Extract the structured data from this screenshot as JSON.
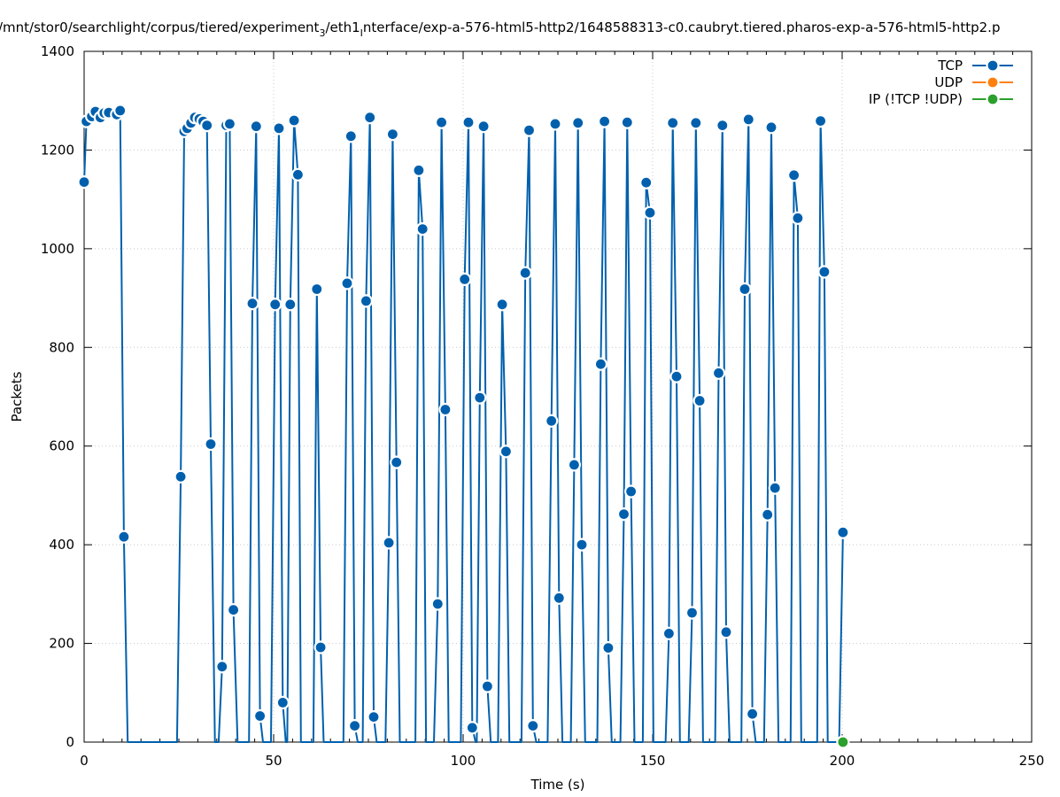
{
  "chart_data": {
    "type": "line",
    "title": "/mnt/stor0/searchlight/corpus/tiered/experiment_3/eth1_interface/exp-a-576-html5-http2/1648588313-c0.caubryt.tiered.pharos-exp-a-576-html5-http2.p",
    "title_parts": {
      "a": "/mnt/stor0/searchlight/corpus/tiered/experiment",
      "a_sub": "3",
      "b": "/eth1",
      "b_sub": "I",
      "c": "nterface/exp-a-576-html5-http2/1648588313-c0.caubryt.tiered.pharos-exp-a-576-html5-http2.p"
    },
    "xlabel": "Time (s)",
    "ylabel": "Packets",
    "xlim": [
      0,
      250
    ],
    "ylim": [
      0,
      1400
    ],
    "x_ticks": [
      0,
      50,
      100,
      150,
      200,
      250
    ],
    "y_ticks": [
      0,
      200,
      400,
      600,
      800,
      1000,
      1200,
      1400
    ],
    "x_tick_labels": [
      "0",
      "50",
      "100",
      "150",
      "200",
      "250"
    ],
    "y_tick_labels": [
      "0",
      "200",
      "400",
      "600",
      "800",
      "1000",
      "1200",
      "1400"
    ],
    "grid": true,
    "legend_position": "top-right",
    "series": [
      {
        "name": "TCP",
        "color": "#0060ad",
        "points": [
          [
            0,
            1135
          ],
          [
            0.6,
            1258
          ],
          [
            2,
            1268
          ],
          [
            3,
            1278
          ],
          [
            4.3,
            1266
          ],
          [
            5.3,
            1275
          ],
          [
            6.5,
            1276
          ],
          [
            8.6,
            1272
          ],
          [
            9.5,
            1280
          ],
          [
            10.5,
            416
          ],
          [
            11.5,
            0
          ],
          [
            24.5,
            0
          ],
          [
            25.5,
            538
          ],
          [
            26.4,
            1238
          ],
          [
            27.2,
            1244
          ],
          [
            28.2,
            1255
          ],
          [
            29.2,
            1266
          ],
          [
            30.4,
            1263
          ],
          [
            31.4,
            1258
          ],
          [
            32.4,
            1250
          ],
          [
            33.4,
            604
          ],
          [
            34.5,
            0
          ],
          [
            35.5,
            0
          ],
          [
            36.4,
            153
          ],
          [
            37.5,
            1250
          ],
          [
            38.4,
            1253
          ],
          [
            39.4,
            268
          ],
          [
            40.5,
            0
          ],
          [
            43.5,
            0
          ],
          [
            44.4,
            889
          ],
          [
            45.4,
            1248
          ],
          [
            46.4,
            53
          ],
          [
            47.2,
            0
          ],
          [
            49.3,
            0
          ],
          [
            50.4,
            887
          ],
          [
            51.4,
            1244
          ],
          [
            52.4,
            80
          ],
          [
            53.2,
            0
          ],
          [
            53.6,
            0
          ],
          [
            54.4,
            887
          ],
          [
            55.4,
            1260
          ],
          [
            56.4,
            1150
          ],
          [
            57.2,
            0
          ],
          [
            60.5,
            0
          ],
          [
            61.4,
            918
          ],
          [
            62.4,
            192
          ],
          [
            63.2,
            0
          ],
          [
            68.4,
            0
          ],
          [
            69.4,
            930
          ],
          [
            70.4,
            1228
          ],
          [
            71.4,
            33
          ],
          [
            72.2,
            0
          ],
          [
            73.5,
            0
          ],
          [
            74.4,
            894
          ],
          [
            75.4,
            1266
          ],
          [
            76.4,
            51
          ],
          [
            77.2,
            0
          ],
          [
            79.5,
            0
          ],
          [
            80.4,
            404
          ],
          [
            81.4,
            1232
          ],
          [
            82.4,
            567
          ],
          [
            83.3,
            0
          ],
          [
            87.4,
            0
          ],
          [
            88.3,
            1159
          ],
          [
            89.3,
            1040
          ],
          [
            90.2,
            0
          ],
          [
            92.3,
            0
          ],
          [
            93.3,
            280
          ],
          [
            94.3,
            1256
          ],
          [
            95.3,
            674
          ],
          [
            96.2,
            0
          ],
          [
            99.4,
            0
          ],
          [
            100.4,
            938
          ],
          [
            101.4,
            1256
          ],
          [
            102.4,
            29
          ],
          [
            103.3,
            0
          ],
          [
            103.6,
            0
          ],
          [
            104.4,
            698
          ],
          [
            105.4,
            1248
          ],
          [
            106.4,
            113
          ],
          [
            107.3,
            0
          ],
          [
            109.2,
            0
          ],
          [
            110.3,
            887
          ],
          [
            111.3,
            589
          ],
          [
            112.2,
            0
          ],
          [
            115.4,
            0
          ],
          [
            116.4,
            951
          ],
          [
            117.4,
            1240
          ],
          [
            118.4,
            33
          ],
          [
            119.3,
            0
          ],
          [
            122.3,
            0
          ],
          [
            123.3,
            651
          ],
          [
            124.3,
            1253
          ],
          [
            125.3,
            292
          ],
          [
            126.2,
            0
          ],
          [
            128.4,
            0
          ],
          [
            129.3,
            562
          ],
          [
            130.3,
            1255
          ],
          [
            131.3,
            400
          ],
          [
            132.2,
            0
          ],
          [
            135.4,
            0
          ],
          [
            136.3,
            766
          ],
          [
            137.3,
            1258
          ],
          [
            138.3,
            191
          ],
          [
            139.2,
            0
          ],
          [
            141.5,
            0
          ],
          [
            142.4,
            462
          ],
          [
            143.3,
            1256
          ],
          [
            144.3,
            508
          ],
          [
            145.2,
            0
          ],
          [
            147.4,
            0
          ],
          [
            148.3,
            1134
          ],
          [
            149.3,
            1073
          ],
          [
            150.2,
            0
          ],
          [
            153.4,
            0
          ],
          [
            154.3,
            220
          ],
          [
            155.3,
            1255
          ],
          [
            156.3,
            741
          ],
          [
            157.2,
            0
          ],
          [
            159.5,
            0
          ],
          [
            160.4,
            262
          ],
          [
            161.4,
            1255
          ],
          [
            162.4,
            692
          ],
          [
            163.3,
            0
          ],
          [
            166.5,
            0
          ],
          [
            167.4,
            748
          ],
          [
            168.4,
            1250
          ],
          [
            169.4,
            223
          ],
          [
            170.3,
            0
          ],
          [
            173.4,
            0
          ],
          [
            174.3,
            918
          ],
          [
            175.3,
            1262
          ],
          [
            176.3,
            57
          ],
          [
            177.2,
            0
          ],
          [
            179.4,
            0
          ],
          [
            180.3,
            461
          ],
          [
            181.3,
            1246
          ],
          [
            182.3,
            515
          ],
          [
            183.2,
            0
          ],
          [
            186.4,
            0
          ],
          [
            187.3,
            1149
          ],
          [
            188.3,
            1062
          ],
          [
            189.2,
            0
          ],
          [
            193.4,
            0
          ],
          [
            194.3,
            1259
          ],
          [
            195.3,
            953
          ],
          [
            196.2,
            0
          ],
          [
            199.2,
            0
          ],
          [
            200.2,
            425
          ]
        ],
        "markers": [
          [
            0,
            1135
          ],
          [
            0.6,
            1258
          ],
          [
            2,
            1268
          ],
          [
            3,
            1278
          ],
          [
            4.3,
            1266
          ],
          [
            5.3,
            1275
          ],
          [
            6.5,
            1276
          ],
          [
            8.6,
            1272
          ],
          [
            9.5,
            1280
          ],
          [
            10.5,
            416
          ],
          [
            25.5,
            538
          ],
          [
            26.4,
            1238
          ],
          [
            27.2,
            1244
          ],
          [
            28.2,
            1255
          ],
          [
            29.2,
            1266
          ],
          [
            30.4,
            1263
          ],
          [
            31.4,
            1258
          ],
          [
            32.4,
            1250
          ],
          [
            33.4,
            604
          ],
          [
            36.4,
            153
          ],
          [
            37.5,
            1250
          ],
          [
            38.4,
            1253
          ],
          [
            39.4,
            268
          ],
          [
            44.4,
            889
          ],
          [
            45.4,
            1248
          ],
          [
            46.4,
            53
          ],
          [
            50.4,
            887
          ],
          [
            51.4,
            1244
          ],
          [
            52.4,
            80
          ],
          [
            54.4,
            887
          ],
          [
            55.4,
            1260
          ],
          [
            56.4,
            1150
          ],
          [
            61.4,
            918
          ],
          [
            62.4,
            192
          ],
          [
            69.4,
            930
          ],
          [
            70.4,
            1228
          ],
          [
            71.4,
            33
          ],
          [
            74.4,
            894
          ],
          [
            75.4,
            1266
          ],
          [
            76.4,
            51
          ],
          [
            80.4,
            404
          ],
          [
            81.4,
            1232
          ],
          [
            82.4,
            567
          ],
          [
            88.3,
            1159
          ],
          [
            89.3,
            1040
          ],
          [
            93.3,
            280
          ],
          [
            94.3,
            1256
          ],
          [
            95.3,
            674
          ],
          [
            100.4,
            938
          ],
          [
            101.4,
            1256
          ],
          [
            102.4,
            29
          ],
          [
            104.4,
            698
          ],
          [
            105.4,
            1248
          ],
          [
            106.4,
            113
          ],
          [
            110.3,
            887
          ],
          [
            111.3,
            589
          ],
          [
            116.4,
            951
          ],
          [
            117.4,
            1240
          ],
          [
            118.4,
            33
          ],
          [
            123.3,
            651
          ],
          [
            124.3,
            1253
          ],
          [
            125.3,
            292
          ],
          [
            129.3,
            562
          ],
          [
            130.3,
            1255
          ],
          [
            131.3,
            400
          ],
          [
            136.3,
            766
          ],
          [
            137.3,
            1258
          ],
          [
            138.3,
            191
          ],
          [
            142.4,
            462
          ],
          [
            143.3,
            1256
          ],
          [
            144.3,
            508
          ],
          [
            148.3,
            1134
          ],
          [
            149.3,
            1073
          ],
          [
            154.3,
            220
          ],
          [
            155.3,
            1255
          ],
          [
            156.3,
            741
          ],
          [
            160.4,
            262
          ],
          [
            161.4,
            1255
          ],
          [
            162.4,
            692
          ],
          [
            167.4,
            748
          ],
          [
            168.4,
            1250
          ],
          [
            169.4,
            223
          ],
          [
            174.3,
            918
          ],
          [
            175.3,
            1262
          ],
          [
            176.3,
            57
          ],
          [
            180.3,
            461
          ],
          [
            181.3,
            1246
          ],
          [
            182.3,
            515
          ],
          [
            187.3,
            1149
          ],
          [
            188.3,
            1062
          ],
          [
            194.3,
            1259
          ],
          [
            195.3,
            953
          ],
          [
            200.2,
            425
          ]
        ]
      },
      {
        "name": "UDP",
        "color": "#ff7f0e",
        "points": [],
        "markers": []
      },
      {
        "name": "IP (!TCP  !UDP)",
        "color": "#2ca02c",
        "points": [
          [
            200.2,
            0
          ]
        ],
        "markers": [
          [
            200.2,
            0
          ]
        ]
      }
    ]
  }
}
